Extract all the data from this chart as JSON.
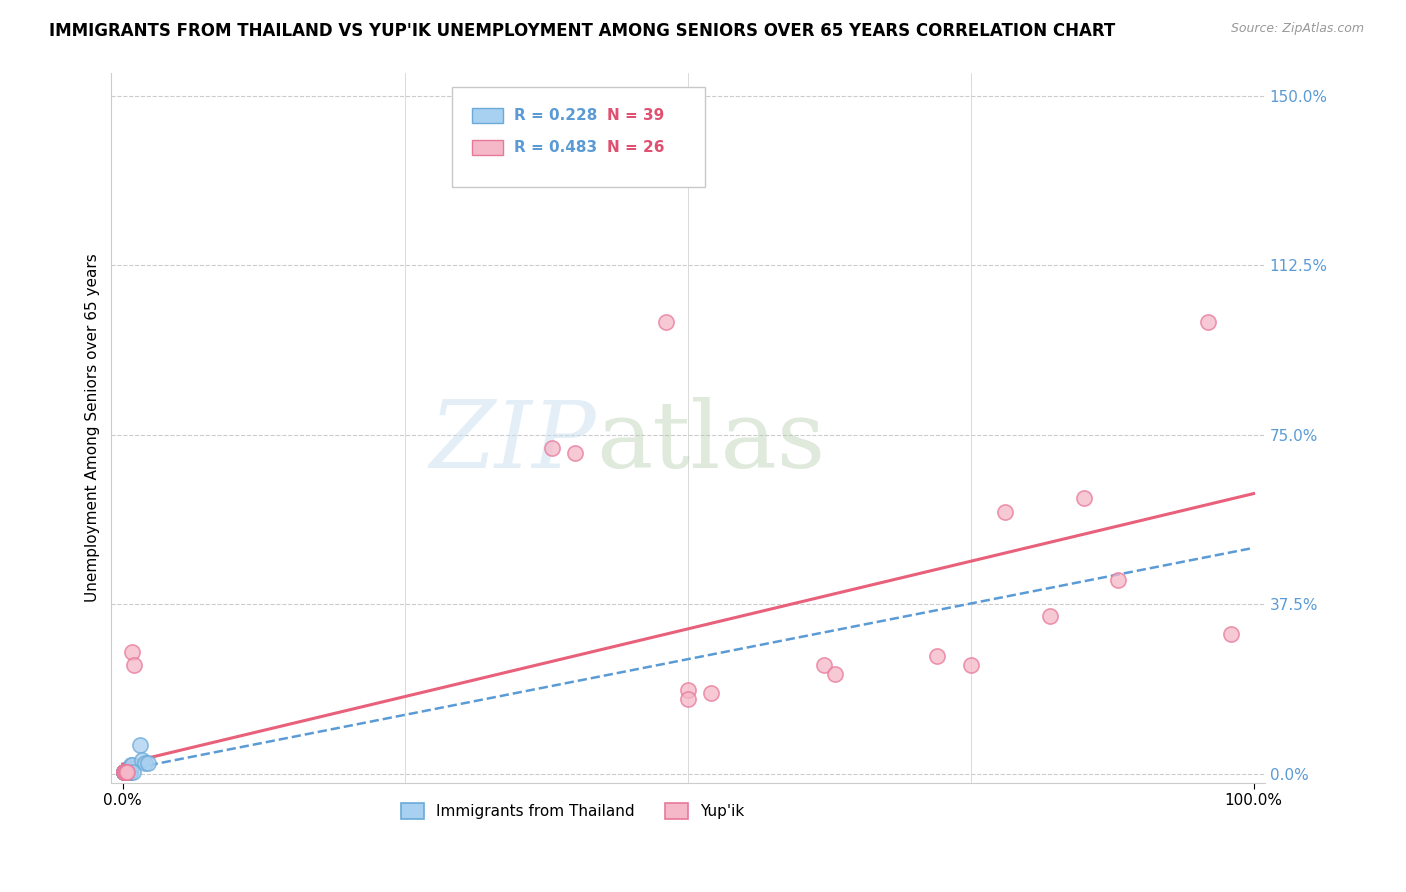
{
  "title": "IMMIGRANTS FROM THAILAND VS YUP'IK UNEMPLOYMENT AMONG SENIORS OVER 65 YEARS CORRELATION CHART",
  "source": "Source: ZipAtlas.com",
  "xlabel_bottom_left": "0.0%",
  "xlabel_bottom_right": "100.0%",
  "ylabel": "Unemployment Among Seniors over 65 years",
  "ytick_labels": [
    "0.0%",
    "37.5%",
    "75.0%",
    "112.5%",
    "150.0%"
  ],
  "ytick_values": [
    0.0,
    0.375,
    0.75,
    1.125,
    1.5
  ],
  "legend_label1": "Immigrants from Thailand",
  "legend_label2": "Yup'ik",
  "legend_r1": "R = 0.228",
  "legend_n1": "N = 39",
  "legend_r2": "R = 0.483",
  "legend_n2": "N = 26",
  "watermark_zip": "ZIP",
  "watermark_atlas": "atlas",
  "blue_color": "#a8d0f0",
  "pink_color": "#f5b8c8",
  "blue_edge_color": "#6aaad8",
  "pink_edge_color": "#e8789a",
  "blue_line_color": "#5b9bd5",
  "pink_line_color": "#e8607a",
  "r_color": "#5b9bd5",
  "n_color": "#e05070",
  "scatter_blue_x": [
    0.001,
    0.001,
    0.001,
    0.001,
    0.001,
    0.001,
    0.001,
    0.001,
    0.002,
    0.002,
    0.002,
    0.002,
    0.002,
    0.002,
    0.002,
    0.002,
    0.003,
    0.003,
    0.003,
    0.003,
    0.003,
    0.003,
    0.004,
    0.004,
    0.004,
    0.004,
    0.005,
    0.005,
    0.005,
    0.006,
    0.006,
    0.006,
    0.007,
    0.008,
    0.009,
    0.015,
    0.017,
    0.02,
    0.022
  ],
  "scatter_blue_y": [
    0.005,
    0.005,
    0.005,
    0.005,
    0.005,
    0.005,
    0.005,
    0.005,
    0.005,
    0.005,
    0.005,
    0.005,
    0.005,
    0.005,
    0.005,
    0.005,
    0.005,
    0.005,
    0.005,
    0.005,
    0.005,
    0.005,
    0.005,
    0.005,
    0.005,
    0.005,
    0.005,
    0.005,
    0.005,
    0.005,
    0.005,
    0.005,
    0.02,
    0.02,
    0.005,
    0.065,
    0.03,
    0.025,
    0.025
  ],
  "scatter_pink_x": [
    0.001,
    0.001,
    0.002,
    0.002,
    0.002,
    0.003,
    0.003,
    0.004,
    0.008,
    0.01,
    0.38,
    0.4,
    0.48,
    0.5,
    0.5,
    0.52,
    0.62,
    0.63,
    0.72,
    0.75,
    0.78,
    0.82,
    0.85,
    0.88,
    0.96,
    0.98
  ],
  "scatter_pink_y": [
    0.005,
    0.005,
    0.005,
    0.005,
    0.005,
    0.005,
    0.005,
    0.005,
    0.27,
    0.24,
    0.72,
    0.71,
    1.0,
    0.185,
    0.165,
    0.18,
    0.24,
    0.22,
    0.26,
    0.24,
    0.58,
    0.35,
    0.61,
    0.43,
    1.0,
    0.31
  ],
  "blue_trendline_x": [
    0.0,
    1.0
  ],
  "blue_trendline_y": [
    0.008,
    0.5
  ],
  "pink_trendline_x": [
    0.0,
    1.0
  ],
  "pink_trendline_y": [
    0.022,
    0.62
  ],
  "xlim": [
    -0.01,
    1.01
  ],
  "ylim": [
    -0.02,
    1.55
  ],
  "grid_color": "#cccccc",
  "background_color": "#ffffff"
}
